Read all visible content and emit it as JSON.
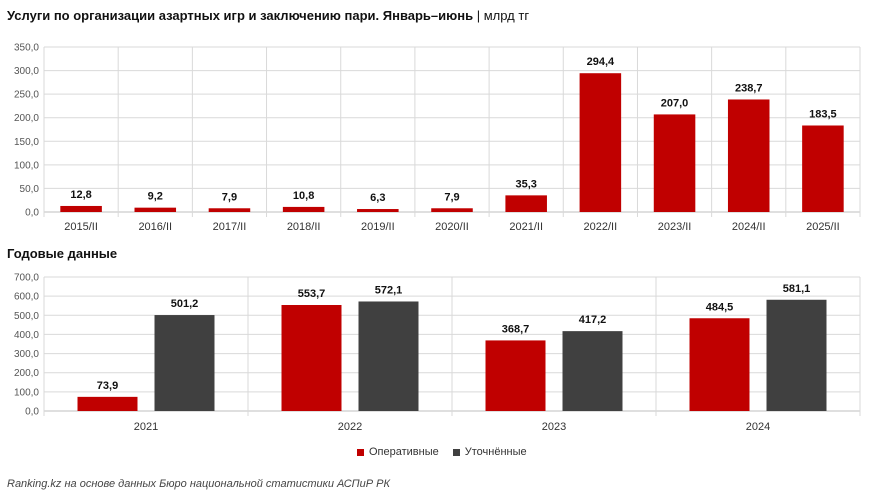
{
  "title": "Услуги по организации азартных игр и заключению пари. Январь–июнь",
  "title_unit": "| млрд тг",
  "subtitle": "Годовые данные",
  "source": "Ranking.kz на основе данных Бюро национальной статистики АСПиР РК",
  "colors": {
    "red": "#c00000",
    "dark": "#404040",
    "grid": "#d9d9d9",
    "axis": "#bfbfbf"
  },
  "chart_data": [
    {
      "type": "bar",
      "title": "Услуги по организации азартных игр и заключению пари. Январь–июнь | млрд тг",
      "categories": [
        "2015/II",
        "2016/II",
        "2017/II",
        "2018/II",
        "2019/II",
        "2020/II",
        "2021/II",
        "2022/II",
        "2023/II",
        "2024/II",
        "2025/II"
      ],
      "values": [
        12.8,
        9.2,
        7.9,
        10.8,
        6.3,
        7.9,
        35.3,
        294.4,
        207.0,
        238.7,
        183.5
      ],
      "value_labels": [
        "12,8",
        "9,2",
        "7,9",
        "10,8",
        "6,3",
        "7,9",
        "35,3",
        "294,4",
        "207,0",
        "238,7",
        "183,5"
      ],
      "ylim": [
        0,
        350
      ],
      "yticks": [
        "0,0",
        "50,0",
        "100,0",
        "150,0",
        "200,0",
        "250,0",
        "300,0",
        "350,0"
      ],
      "grid": true
    },
    {
      "type": "bar",
      "title": "Годовые данные",
      "categories": [
        "2021",
        "2022",
        "2023",
        "2024"
      ],
      "series": [
        {
          "name": "Оперативные",
          "values": [
            73.9,
            553.7,
            368.7,
            484.5
          ],
          "labels": [
            "73,9",
            "553,7",
            "368,7",
            "484,5"
          ]
        },
        {
          "name": "Уточнённые",
          "values": [
            501.2,
            572.1,
            417.2,
            581.1
          ],
          "labels": [
            "501,2",
            "572,1",
            "417,2",
            "581,1"
          ]
        }
      ],
      "ylim": [
        0,
        700
      ],
      "yticks": [
        "0,0",
        "100,0",
        "200,0",
        "300,0",
        "400,0",
        "500,0",
        "600,0",
        "700,0"
      ],
      "legend": "bottom-center",
      "grid": true
    }
  ]
}
